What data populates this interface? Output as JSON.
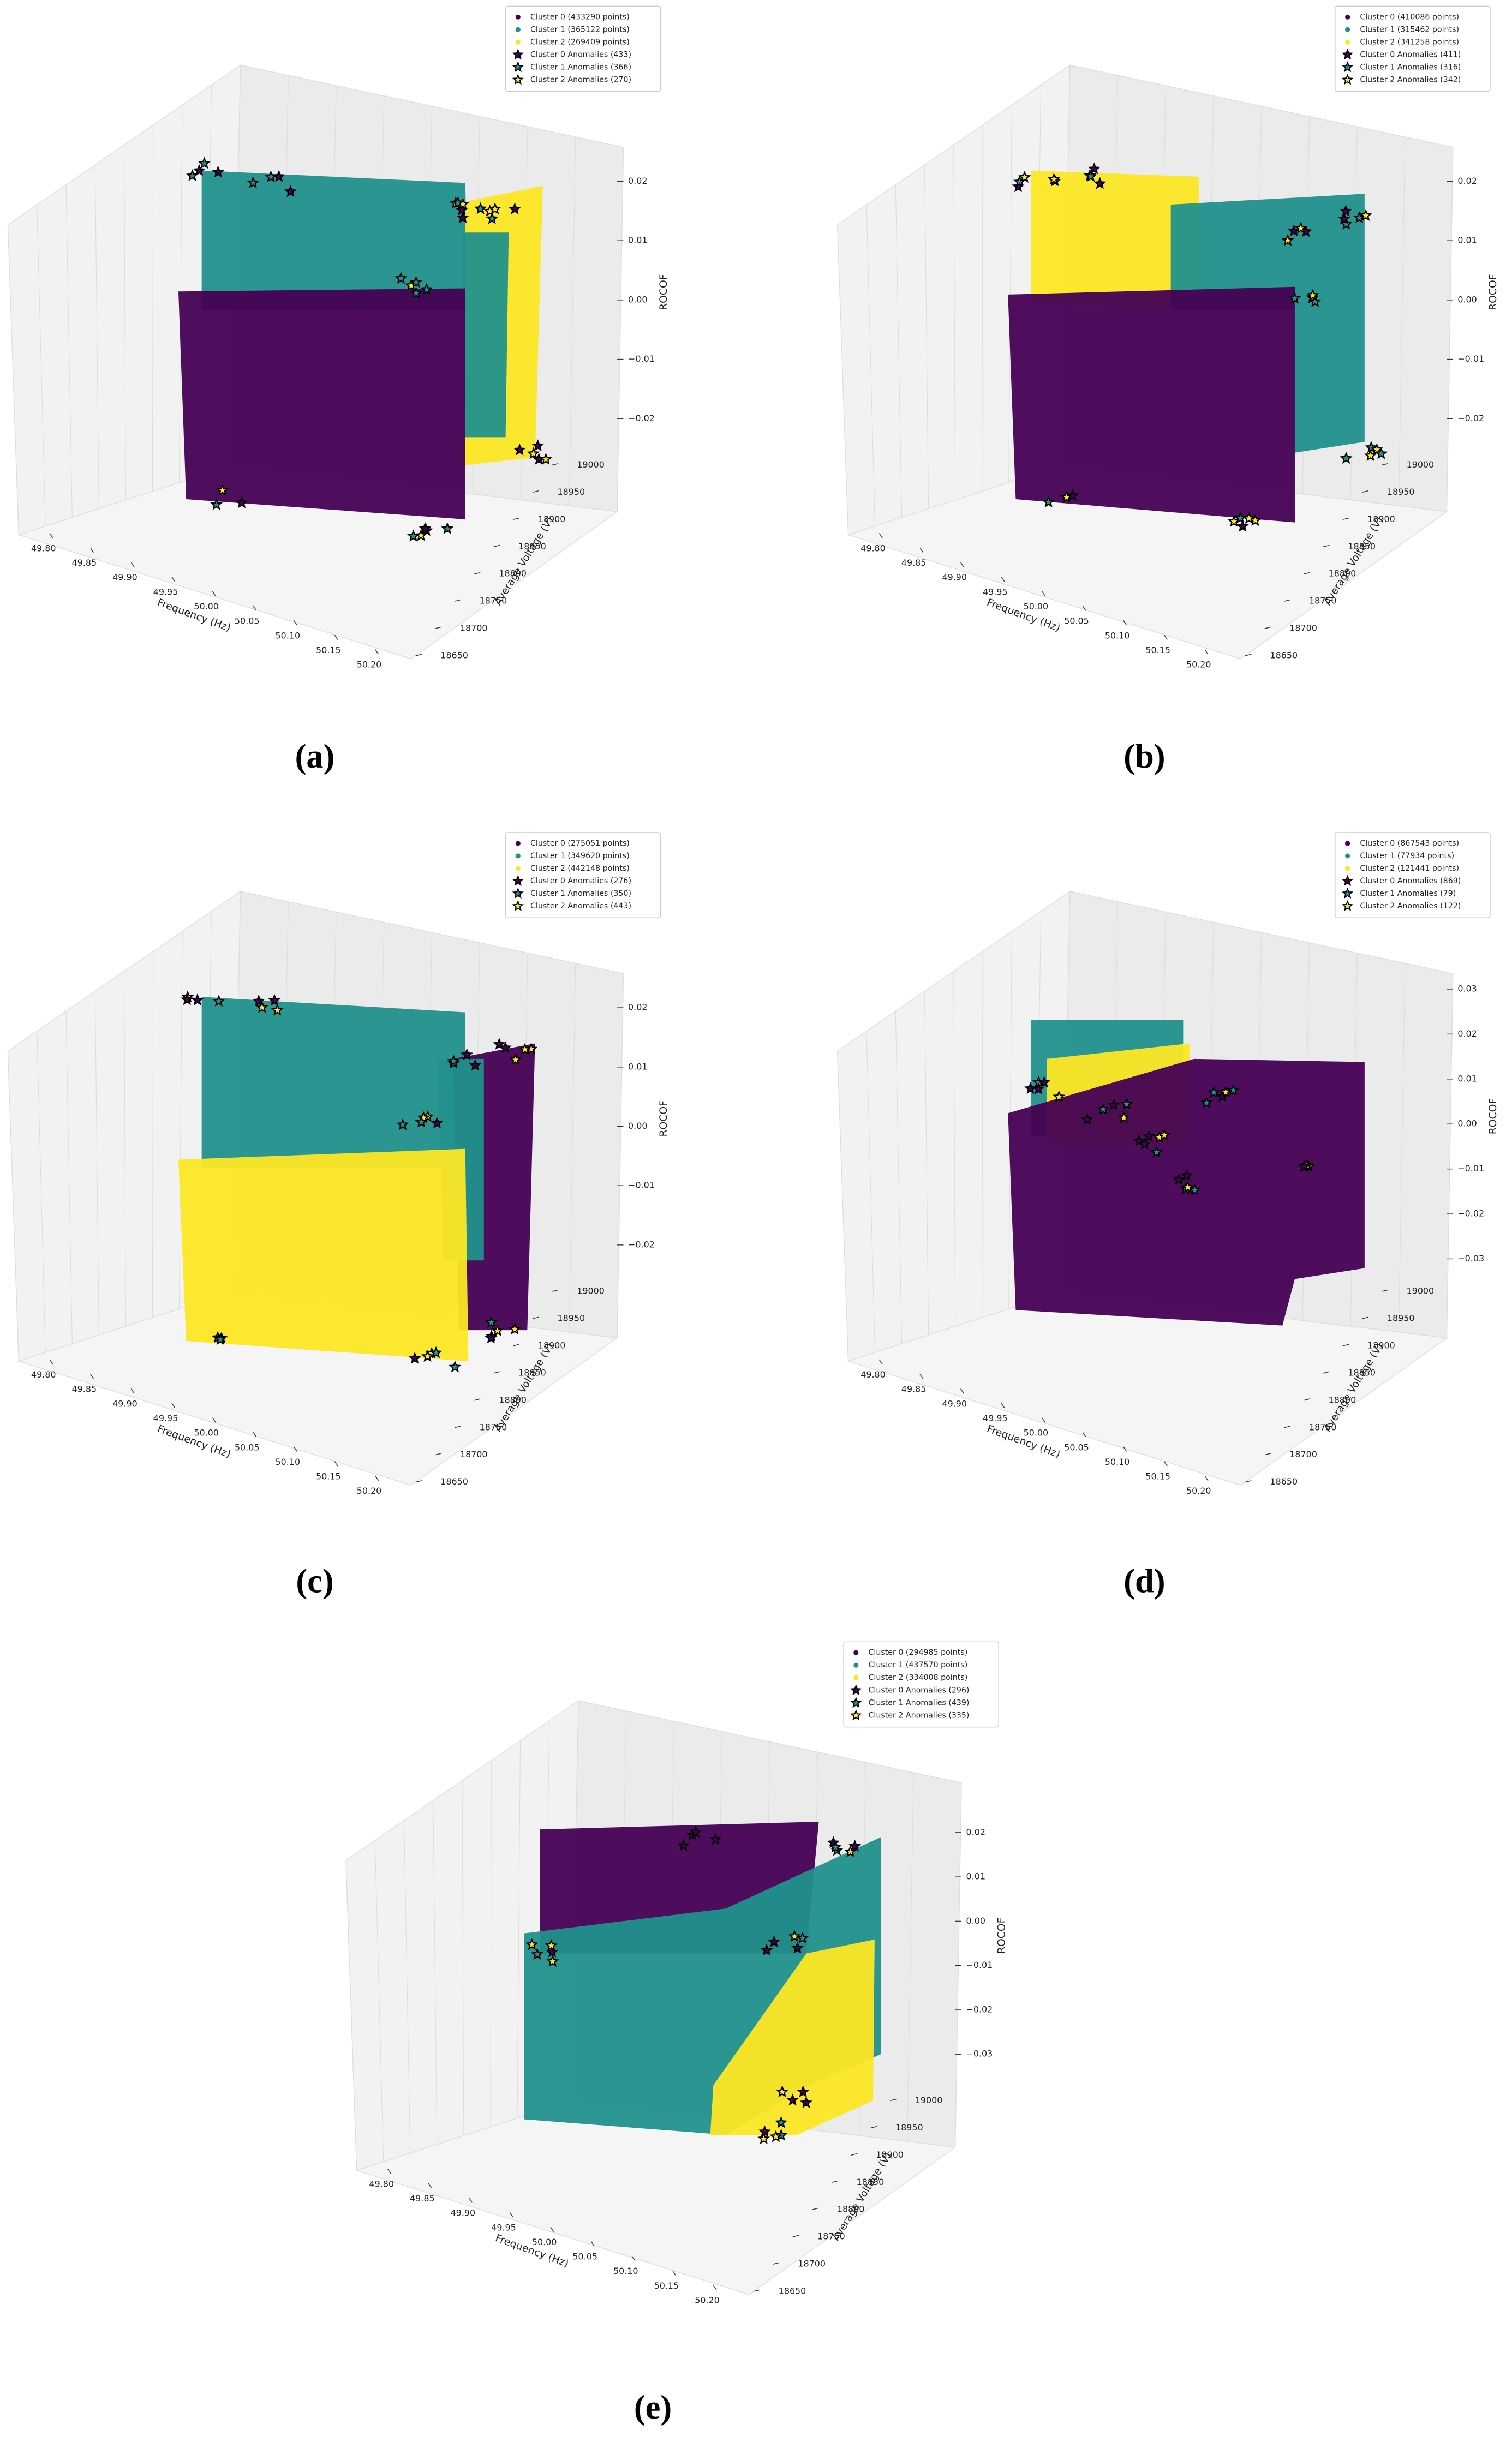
{
  "chart_data": [
    {
      "type": "scatter3d",
      "panel_label": "(a)",
      "xlabel": "Frequency (Hz)",
      "ylabel": "Average Voltage (V)",
      "zlabel": "ROCOF",
      "series": [
        {
          "name": "Cluster 0 (433290 points)",
          "color": "#440154",
          "marker": "dot"
        },
        {
          "name": "Cluster 1 (365122 points)",
          "color": "#21918c",
          "marker": "dot"
        },
        {
          "name": "Cluster 2 (269409 points)",
          "color": "#fde725",
          "marker": "dot"
        },
        {
          "name": "Cluster 0 Anomalies (433)",
          "color": "#440154",
          "marker": "star"
        },
        {
          "name": "Cluster 1 Anomalies (366)",
          "color": "#21918c",
          "marker": "star"
        },
        {
          "name": "Cluster 2 Anomalies (270)",
          "color": "#fde725",
          "marker": "star"
        }
      ],
      "xlim": [
        49.8,
        50.2
      ],
      "xticks": [
        {
          "value": 49.8,
          "label": "49.80"
        },
        49.85,
        {
          "value": 49.9,
          "label": "49.90"
        },
        49.95,
        {
          "value": 50,
          "label": "50.00"
        },
        50.05,
        {
          "value": 50.1,
          "label": "50.10"
        },
        50.15,
        {
          "value": 50.2,
          "label": "50.20"
        }
      ],
      "ylim": [
        18650,
        19000
      ],
      "yticks": [
        18650,
        18700,
        18750,
        18800,
        18850,
        18900,
        18950,
        19000
      ],
      "zlim": [
        -0.02,
        0.02
      ],
      "zticks": [
        0.02,
        0.01,
        {
          "value": 0,
          "label": "0.00"
        },
        {
          "value": -0.01,
          "label": "−0.01"
        },
        {
          "value": -0.02,
          "label": "−0.02"
        }
      ]
    },
    {
      "type": "scatter3d",
      "panel_label": "(b)",
      "xlabel": "Frequency (Hz)",
      "ylabel": "Average Voltage (V)",
      "zlabel": "ROCOF",
      "series": [
        {
          "name": "Cluster 0 (410086 points)",
          "color": "#440154",
          "marker": "dot"
        },
        {
          "name": "Cluster 1 (315462 points)",
          "color": "#21918c",
          "marker": "dot"
        },
        {
          "name": "Cluster 2 (341258 points)",
          "color": "#fde725",
          "marker": "dot"
        },
        {
          "name": "Cluster 0 Anomalies (411)",
          "color": "#440154",
          "marker": "star"
        },
        {
          "name": "Cluster 1 Anomalies (316)",
          "color": "#21918c",
          "marker": "star"
        },
        {
          "name": "Cluster 2 Anomalies (342)",
          "color": "#fde725",
          "marker": "star"
        }
      ],
      "xlim": [
        49.8,
        50.2
      ],
      "xticks": [
        {
          "value": 49.8,
          "label": "49.80"
        },
        49.85,
        {
          "value": 49.9,
          "label": "49.90"
        },
        49.95,
        {
          "value": 50,
          "label": "50.00"
        },
        50.05,
        {
          "value": 50.1,
          "label": "50.10"
        },
        50.15,
        {
          "value": 50.2,
          "label": "50.20"
        }
      ],
      "ylim": [
        18650,
        19000
      ],
      "yticks": [
        18650,
        18700,
        18750,
        18800,
        18850,
        18900,
        18950,
        19000
      ],
      "zlim": [
        -0.02,
        0.02
      ],
      "zticks": [
        0.02,
        0.01,
        {
          "value": 0,
          "label": "0.00"
        },
        {
          "value": -0.01,
          "label": "−0.01"
        },
        {
          "value": -0.02,
          "label": "−0.02"
        }
      ]
    },
    {
      "type": "scatter3d",
      "panel_label": "(c)",
      "xlabel": "Frequency (Hz)",
      "ylabel": "Average Voltage (V)",
      "zlabel": "ROCOF",
      "series": [
        {
          "name": "Cluster 0 (275051 points)",
          "color": "#440154",
          "marker": "dot"
        },
        {
          "name": "Cluster 1 (349620 points)",
          "color": "#21918c",
          "marker": "dot"
        },
        {
          "name": "Cluster 2 (442148 points)",
          "color": "#fde725",
          "marker": "dot"
        },
        {
          "name": "Cluster 0 Anomalies (276)",
          "color": "#440154",
          "marker": "star"
        },
        {
          "name": "Cluster 1 Anomalies (350)",
          "color": "#21918c",
          "marker": "star"
        },
        {
          "name": "Cluster 2 Anomalies (443)",
          "color": "#fde725",
          "marker": "star"
        }
      ],
      "xlim": [
        49.8,
        50.2
      ],
      "xticks": [
        {
          "value": 49.8,
          "label": "49.80"
        },
        49.85,
        {
          "value": 49.9,
          "label": "49.90"
        },
        49.95,
        {
          "value": 50,
          "label": "50.00"
        },
        50.05,
        {
          "value": 50.1,
          "label": "50.10"
        },
        50.15,
        {
          "value": 50.2,
          "label": "50.20"
        }
      ],
      "ylim": [
        18650,
        19000
      ],
      "yticks": [
        18650,
        18700,
        18750,
        18800,
        18850,
        18900,
        18950,
        19000
      ],
      "zlim": [
        -0.02,
        0.02
      ],
      "zticks": [
        0.02,
        0.01,
        {
          "value": 0,
          "label": "0.00"
        },
        {
          "value": -0.01,
          "label": "−0.01"
        },
        {
          "value": -0.02,
          "label": "−0.02"
        }
      ]
    },
    {
      "type": "scatter3d",
      "panel_label": "(d)",
      "xlabel": "Frequency (Hz)",
      "ylabel": "Average Voltage (V)",
      "zlabel": "ROCOF",
      "series": [
        {
          "name": "Cluster 0 (867543 points)",
          "color": "#440154",
          "marker": "dot"
        },
        {
          "name": "Cluster 1 (77934 points)",
          "color": "#21918c",
          "marker": "dot"
        },
        {
          "name": "Cluster 2 (121441 points)",
          "color": "#fde725",
          "marker": "dot"
        },
        {
          "name": "Cluster 0 Anomalies (869)",
          "color": "#440154",
          "marker": "star"
        },
        {
          "name": "Cluster 1 Anomalies (79)",
          "color": "#21918c",
          "marker": "star"
        },
        {
          "name": "Cluster 2 Anomalies (122)",
          "color": "#fde725",
          "marker": "star"
        }
      ],
      "xlim": [
        49.8,
        50.2
      ],
      "xticks": [
        {
          "value": 49.8,
          "label": "49.80"
        },
        49.85,
        {
          "value": 49.9,
          "label": "49.90"
        },
        49.95,
        {
          "value": 50,
          "label": "50.00"
        },
        50.05,
        {
          "value": 50.1,
          "label": "50.10"
        },
        50.15,
        {
          "value": 50.2,
          "label": "50.20"
        }
      ],
      "ylim": [
        18650,
        19000
      ],
      "yticks": [
        18650,
        18700,
        18750,
        18800,
        18850,
        18900,
        18950,
        19000
      ],
      "zlim": [
        -0.03,
        0.03
      ],
      "zticks": [
        0.03,
        0.02,
        0.01,
        {
          "value": 0,
          "label": "0.00"
        },
        {
          "value": -0.01,
          "label": "−0.01"
        },
        {
          "value": -0.02,
          "label": "−0.02"
        },
        {
          "value": -0.03,
          "label": "−0.03"
        }
      ]
    },
    {
      "type": "scatter3d",
      "panel_label": "(e)",
      "xlabel": "Frequency (Hz)",
      "ylabel": "Average Voltage (V)",
      "zlabel": "ROCOF",
      "series": [
        {
          "name": "Cluster 0 (294985 points)",
          "color": "#440154",
          "marker": "dot"
        },
        {
          "name": "Cluster 1 (437570 points)",
          "color": "#21918c",
          "marker": "dot"
        },
        {
          "name": "Cluster 2 (334008 points)",
          "color": "#fde725",
          "marker": "dot"
        },
        {
          "name": "Cluster 0 Anomalies (296)",
          "color": "#440154",
          "marker": "star"
        },
        {
          "name": "Cluster 1 Anomalies (439)",
          "color": "#21918c",
          "marker": "star"
        },
        {
          "name": "Cluster 2 Anomalies (335)",
          "color": "#fde725",
          "marker": "star"
        }
      ],
      "xlim": [
        49.8,
        50.2
      ],
      "xticks": [
        {
          "value": 49.8,
          "label": "49.80"
        },
        49.85,
        {
          "value": 49.9,
          "label": "49.90"
        },
        49.95,
        {
          "value": 50,
          "label": "50.00"
        },
        50.05,
        {
          "value": 50.1,
          "label": "50.10"
        },
        50.15,
        {
          "value": 50.2,
          "label": "50.20"
        }
      ],
      "ylim": [
        18650,
        19000
      ],
      "yticks": [
        18650,
        18700,
        18750,
        18800,
        18850,
        18900,
        18950,
        19000
      ],
      "zlim": [
        -0.03,
        0.02
      ],
      "zticks": [
        0.02,
        0.01,
        {
          "value": 0,
          "label": "0.00"
        },
        {
          "value": -0.01,
          "label": "−0.01"
        },
        {
          "value": -0.02,
          "label": "−0.02"
        },
        {
          "value": -0.03,
          "label": "−0.03"
        }
      ]
    }
  ]
}
